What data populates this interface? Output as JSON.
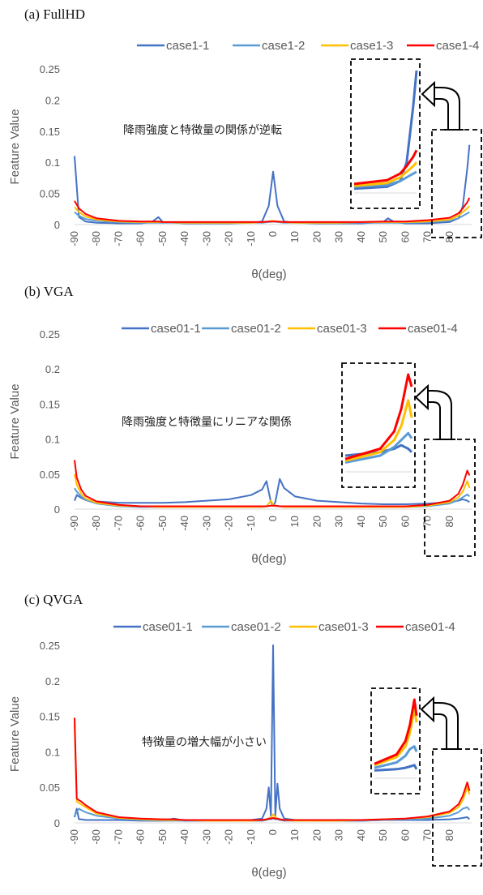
{
  "chart_data": [
    {
      "type": "line",
      "panel_label": "(a)  FullHD",
      "title": "",
      "xlabel": "θ(deg)",
      "ylabel": "Feature Value",
      "xlim": [
        -90,
        90
      ],
      "ylim": [
        0,
        0.25
      ],
      "x_ticks": [
        -90,
        -80,
        -70,
        -60,
        -50,
        -40,
        -30,
        -20,
        -10,
        0,
        10,
        20,
        30,
        40,
        50,
        60,
        70,
        80
      ],
      "y_ticks": [
        0,
        0.05,
        0.1,
        0.15,
        0.2,
        0.25
      ],
      "y_tick_labels": [
        "0",
        "0.05",
        "0.1",
        "0.15",
        "0.2",
        "0.25"
      ],
      "annotation": "降雨強度と特徴量の関係が逆転",
      "legend_position": "top",
      "grid": false,
      "x": [
        -90,
        -88,
        -85,
        -80,
        -70,
        -60,
        -55,
        -52,
        -50,
        -40,
        -30,
        -20,
        -10,
        -5,
        -2,
        0,
        2,
        5,
        10,
        20,
        30,
        40,
        50,
        52,
        55,
        60,
        70,
        80,
        84,
        86,
        88,
        89
      ],
      "series": [
        {
          "name": "case1-1",
          "color": "#4472C4",
          "values": [
            0.11,
            0.012,
            0.005,
            0.003,
            0.002,
            0.002,
            0.004,
            0.012,
            0.004,
            0.002,
            0.002,
            0.002,
            0.003,
            0.005,
            0.03,
            0.085,
            0.03,
            0.005,
            0.003,
            0.002,
            0.002,
            0.002,
            0.004,
            0.01,
            0.004,
            0.002,
            0.002,
            0.004,
            0.01,
            0.03,
            0.09,
            0.128
          ]
        },
        {
          "name": "case1-2",
          "color": "#5B9BD5",
          "values": [
            0.02,
            0.014,
            0.009,
            0.006,
            0.004,
            0.003,
            0.003,
            0.003,
            0.003,
            0.003,
            0.003,
            0.003,
            0.003,
            0.003,
            0.004,
            0.005,
            0.004,
            0.003,
            0.003,
            0.003,
            0.003,
            0.003,
            0.003,
            0.003,
            0.003,
            0.003,
            0.004,
            0.006,
            0.01,
            0.014,
            0.018,
            0.02
          ]
        },
        {
          "name": "case1-3",
          "color": "#FFC000",
          "values": [
            0.028,
            0.02,
            0.013,
            0.008,
            0.005,
            0.004,
            0.004,
            0.004,
            0.004,
            0.003,
            0.003,
            0.003,
            0.003,
            0.004,
            0.005,
            0.006,
            0.005,
            0.004,
            0.003,
            0.003,
            0.003,
            0.004,
            0.004,
            0.004,
            0.004,
            0.004,
            0.005,
            0.008,
            0.014,
            0.02,
            0.026,
            0.03
          ]
        },
        {
          "name": "case1-4",
          "color": "#FF0000",
          "values": [
            0.038,
            0.026,
            0.017,
            0.01,
            0.006,
            0.005,
            0.005,
            0.005,
            0.004,
            0.004,
            0.004,
            0.004,
            0.004,
            0.004,
            0.005,
            0.005,
            0.005,
            0.004,
            0.004,
            0.004,
            0.004,
            0.004,
            0.005,
            0.005,
            0.005,
            0.005,
            0.007,
            0.011,
            0.018,
            0.026,
            0.036,
            0.043
          ]
        }
      ]
    },
    {
      "type": "line",
      "panel_label": "(b)  VGA",
      "title": "",
      "xlabel": "θ(deg)",
      "ylabel": "Feature Value",
      "xlim": [
        -90,
        90
      ],
      "ylim": [
        0,
        0.25
      ],
      "x_ticks": [
        -90,
        -80,
        -70,
        -60,
        -50,
        -40,
        -30,
        -20,
        -10,
        0,
        10,
        20,
        30,
        40,
        50,
        60,
        70,
        80
      ],
      "y_ticks": [
        0,
        0.05,
        0.1,
        0.15,
        0.2,
        0.25
      ],
      "y_tick_labels": [
        "0",
        "0.05",
        "0.1",
        "0.15",
        "0.2",
        "0.25"
      ],
      "annotation": "降雨強度と特徴量にリニアな関係",
      "legend_position": "top",
      "grid": false,
      "x": [
        -90,
        -89,
        -87,
        -85,
        -80,
        -70,
        -60,
        -50,
        -40,
        -30,
        -20,
        -10,
        -5,
        -3,
        -1,
        0,
        1,
        3,
        5,
        10,
        20,
        30,
        40,
        50,
        60,
        70,
        80,
        84,
        86,
        88,
        89
      ],
      "series": [
        {
          "name": "case01-1",
          "color": "#4472C4",
          "values": [
            0.012,
            0.02,
            0.016,
            0.013,
            0.011,
            0.009,
            0.009,
            0.009,
            0.01,
            0.012,
            0.014,
            0.02,
            0.028,
            0.04,
            0.01,
            0.005,
            0.01,
            0.043,
            0.03,
            0.018,
            0.012,
            0.01,
            0.008,
            0.007,
            0.007,
            0.008,
            0.01,
            0.012,
            0.014,
            0.012,
            0.01
          ]
        },
        {
          "name": "case01-2",
          "color": "#5B9BD5",
          "values": [
            0.03,
            0.025,
            0.018,
            0.013,
            0.008,
            0.004,
            0.003,
            0.003,
            0.003,
            0.003,
            0.003,
            0.003,
            0.003,
            0.004,
            0.005,
            0.005,
            0.005,
            0.004,
            0.003,
            0.003,
            0.003,
            0.003,
            0.003,
            0.003,
            0.003,
            0.004,
            0.008,
            0.013,
            0.017,
            0.021,
            0.018
          ]
        },
        {
          "name": "case01-3",
          "color": "#FFC000",
          "values": [
            0.05,
            0.035,
            0.022,
            0.015,
            0.009,
            0.005,
            0.004,
            0.003,
            0.003,
            0.003,
            0.003,
            0.003,
            0.003,
            0.004,
            0.012,
            0.006,
            0.004,
            0.004,
            0.003,
            0.003,
            0.003,
            0.003,
            0.003,
            0.003,
            0.003,
            0.005,
            0.01,
            0.017,
            0.025,
            0.04,
            0.03
          ]
        },
        {
          "name": "case01-4",
          "color": "#FF0000",
          "values": [
            0.07,
            0.045,
            0.028,
            0.019,
            0.011,
            0.006,
            0.004,
            0.004,
            0.004,
            0.004,
            0.004,
            0.004,
            0.004,
            0.004,
            0.005,
            0.005,
            0.005,
            0.004,
            0.004,
            0.004,
            0.004,
            0.004,
            0.004,
            0.004,
            0.004,
            0.006,
            0.012,
            0.022,
            0.035,
            0.055,
            0.048
          ]
        }
      ]
    },
    {
      "type": "line",
      "panel_label": "(c)  QVGA",
      "title": "",
      "xlabel": "θ(deg)",
      "ylabel": "Feature Value",
      "xlim": [
        -90,
        90
      ],
      "ylim": [
        0,
        0.25
      ],
      "x_ticks": [
        -90,
        -80,
        -70,
        -60,
        -50,
        -40,
        -30,
        -20,
        -10,
        0,
        10,
        20,
        30,
        40,
        50,
        60,
        70,
        80
      ],
      "y_ticks": [
        0,
        0.05,
        0.1,
        0.15,
        0.2,
        0.25
      ],
      "y_tick_labels": [
        "0",
        "0.05",
        "0.1",
        "0.15",
        "0.2",
        "0.25"
      ],
      "annotation": "特徴量の増大幅が小さい",
      "legend_position": "top",
      "grid": false,
      "x": [
        -90,
        -89,
        -88,
        -87,
        -85,
        -80,
        -70,
        -60,
        -50,
        -45,
        -40,
        -30,
        -20,
        -10,
        -5,
        -3,
        -2,
        -1,
        0,
        1,
        2,
        3,
        5,
        10,
        20,
        30,
        40,
        50,
        60,
        70,
        80,
        84,
        86,
        88,
        89
      ],
      "series": [
        {
          "name": "case01-1",
          "color": "#4472C4",
          "values": [
            0.008,
            0.02,
            0.005,
            0.005,
            0.004,
            0.004,
            0.004,
            0.003,
            0.003,
            0.006,
            0.003,
            0.003,
            0.003,
            0.004,
            0.006,
            0.02,
            0.05,
            0.01,
            0.25,
            0.01,
            0.055,
            0.02,
            0.006,
            0.004,
            0.003,
            0.003,
            0.003,
            0.004,
            0.004,
            0.004,
            0.005,
            0.006,
            0.007,
            0.008,
            0.005
          ]
        },
        {
          "name": "case01-2",
          "color": "#5B9BD5",
          "values": [
            0.01,
            0.015,
            0.02,
            0.018,
            0.015,
            0.01,
            0.006,
            0.004,
            0.003,
            0.003,
            0.003,
            0.003,
            0.003,
            0.003,
            0.003,
            0.004,
            0.005,
            0.005,
            0.006,
            0.005,
            0.005,
            0.004,
            0.003,
            0.003,
            0.003,
            0.003,
            0.003,
            0.004,
            0.005,
            0.006,
            0.01,
            0.015,
            0.02,
            0.022,
            0.018
          ]
        },
        {
          "name": "case01-3",
          "color": "#FFC000",
          "values": [
            0.14,
            0.03,
            0.028,
            0.026,
            0.022,
            0.013,
            0.007,
            0.005,
            0.004,
            0.004,
            0.004,
            0.003,
            0.003,
            0.003,
            0.004,
            0.005,
            0.006,
            0.008,
            0.012,
            0.008,
            0.006,
            0.005,
            0.004,
            0.003,
            0.003,
            0.003,
            0.004,
            0.005,
            0.006,
            0.008,
            0.014,
            0.022,
            0.032,
            0.05,
            0.04
          ]
        },
        {
          "name": "case01-4",
          "color": "#FF0000",
          "values": [
            0.148,
            0.034,
            0.032,
            0.03,
            0.025,
            0.015,
            0.008,
            0.006,
            0.005,
            0.005,
            0.004,
            0.004,
            0.004,
            0.004,
            0.004,
            0.005,
            0.006,
            0.006,
            0.007,
            0.006,
            0.006,
            0.005,
            0.004,
            0.004,
            0.004,
            0.004,
            0.004,
            0.005,
            0.006,
            0.009,
            0.016,
            0.026,
            0.038,
            0.057,
            0.045
          ]
        }
      ]
    }
  ]
}
